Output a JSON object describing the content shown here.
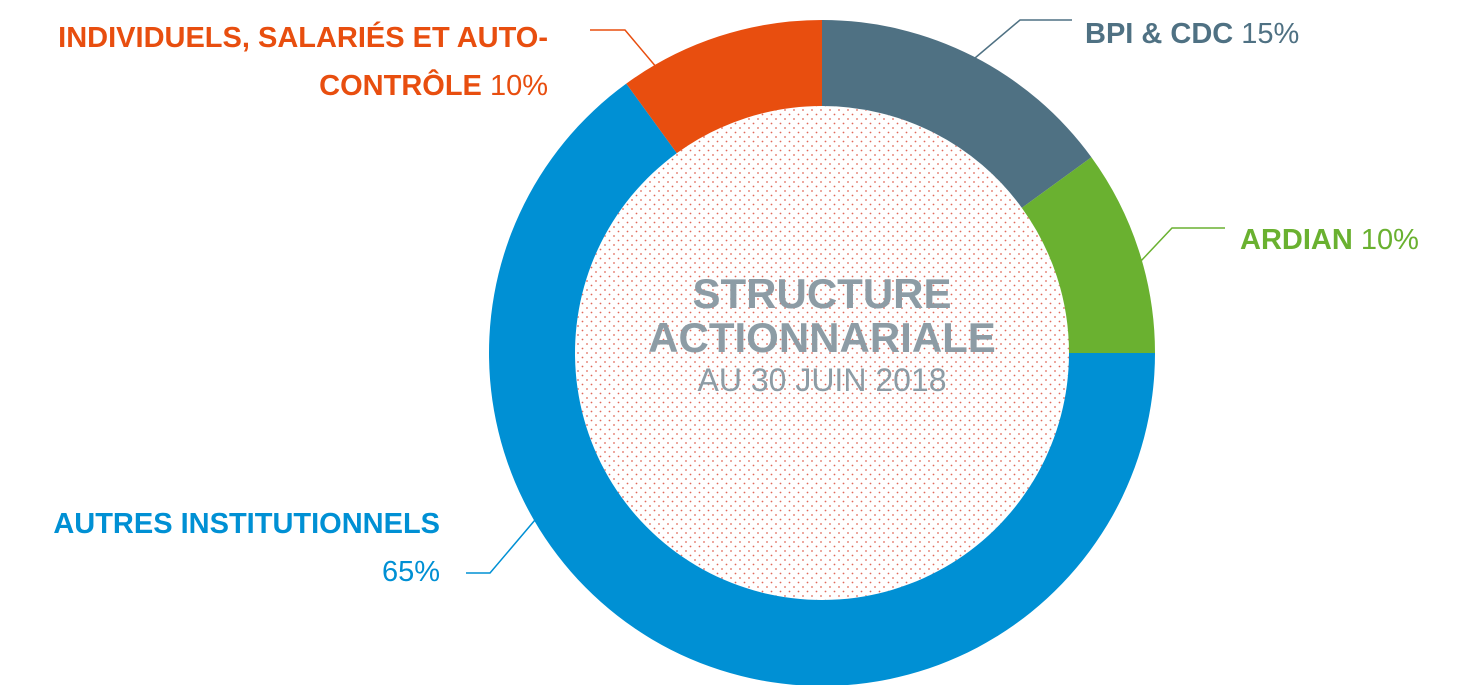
{
  "chart_data": {
    "type": "donut",
    "title": "STRUCTURE ACTIONNARIALE",
    "subtitle": "AU 30 JUIN 2018",
    "categories": [
      "BPI & CDC",
      "ARDIAN",
      "AUTRES INSTITUTIONNELS",
      "INDIVIDUELS, SALARIÉS ET AUTO-CONTRÔLE"
    ],
    "values": [
      15,
      10,
      65,
      10
    ],
    "value_labels": [
      "15%",
      "10%",
      "65%",
      "10%"
    ],
    "colors": [
      "#4f7183",
      "#6ab130",
      "#0090d4",
      "#e84e0f"
    ]
  }
}
